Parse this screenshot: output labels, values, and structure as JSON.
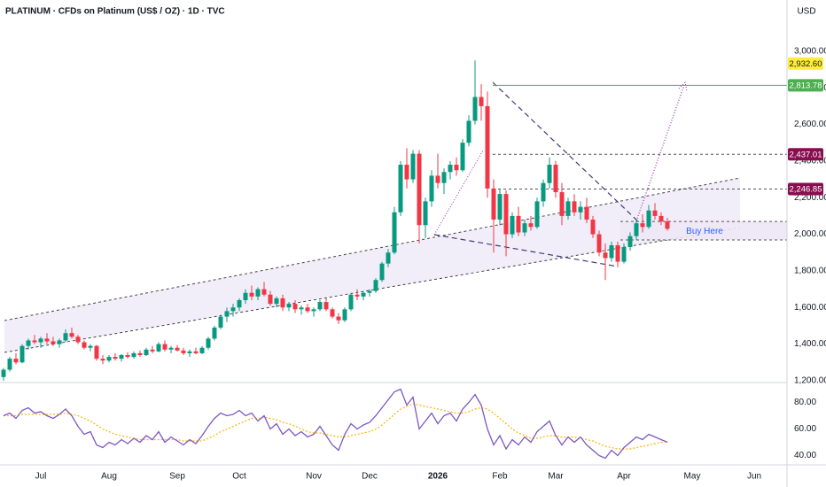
{
  "chart_data": {
    "type": "candlestick",
    "title": "PLATINUM · CFDs on Platinum (US$ / OZ) · 1D · TVC",
    "currency": "USD",
    "up_color": "#089981",
    "down_color": "#f23645",
    "grid": false,
    "categories": [
      null,
      null,
      null,
      null,
      null,
      null,
      "Jul",
      null,
      null,
      null,
      null,
      null,
      null,
      null,
      null,
      null,
      null,
      "Aug",
      null,
      null,
      null,
      null,
      null,
      null,
      null,
      null,
      null,
      null,
      "Sep",
      null,
      null,
      null,
      null,
      null,
      null,
      null,
      null,
      null,
      "Oct",
      null,
      null,
      null,
      null,
      null,
      null,
      null,
      null,
      null,
      null,
      null,
      "Nov",
      null,
      null,
      null,
      null,
      null,
      null,
      null,
      null,
      "Dec",
      null,
      null,
      null,
      null,
      null,
      null,
      null,
      null,
      null,
      null,
      "2026",
      null,
      null,
      null,
      null,
      null,
      null,
      null,
      null,
      null,
      "Feb",
      null,
      null,
      null,
      null,
      null,
      null,
      null,
      null,
      "Mar",
      null,
      null,
      null,
      null,
      null,
      null,
      null,
      null,
      null,
      null,
      "Apr",
      null,
      null,
      null,
      null,
      null,
      null,
      null,
      null,
      null,
      null,
      "May",
      null,
      null,
      null,
      null,
      null,
      null,
      null,
      null,
      null,
      "Jun",
      null,
      null,
      null,
      null
    ],
    "ohlc": [
      [
        1220,
        1270,
        1200,
        1260
      ],
      [
        1260,
        1330,
        1250,
        1320
      ],
      [
        1320,
        1350,
        1290,
        1300
      ],
      [
        1300,
        1400,
        1295,
        1390
      ],
      [
        1390,
        1430,
        1370,
        1420
      ],
      [
        1420,
        1450,
        1400,
        1410
      ],
      [
        1410,
        1440,
        1380,
        1430
      ],
      [
        1430,
        1460,
        1400,
        1415
      ],
      [
        1415,
        1440,
        1390,
        1400
      ],
      [
        1400,
        1430,
        1380,
        1420
      ],
      [
        1420,
        1480,
        1410,
        1460
      ],
      [
        1460,
        1490,
        1430,
        1440
      ],
      [
        1440,
        1450,
        1400,
        1410
      ],
      [
        1410,
        1420,
        1370,
        1380
      ],
      [
        1380,
        1400,
        1360,
        1390
      ],
      [
        1390,
        1395,
        1310,
        1320
      ],
      [
        1320,
        1340,
        1290,
        1310
      ],
      [
        1310,
        1340,
        1300,
        1330
      ],
      [
        1330,
        1350,
        1310,
        1320
      ],
      [
        1320,
        1345,
        1305,
        1340
      ],
      [
        1340,
        1355,
        1320,
        1330
      ],
      [
        1330,
        1360,
        1320,
        1350
      ],
      [
        1350,
        1365,
        1330,
        1340
      ],
      [
        1340,
        1380,
        1335,
        1370
      ],
      [
        1370,
        1390,
        1350,
        1360
      ],
      [
        1360,
        1410,
        1355,
        1400
      ],
      [
        1400,
        1420,
        1360,
        1370
      ],
      [
        1370,
        1390,
        1350,
        1380
      ],
      [
        1380,
        1395,
        1360,
        1365
      ],
      [
        1365,
        1380,
        1340,
        1350
      ],
      [
        1350,
        1370,
        1330,
        1360
      ],
      [
        1360,
        1380,
        1345,
        1350
      ],
      [
        1350,
        1390,
        1345,
        1380
      ],
      [
        1380,
        1440,
        1370,
        1430
      ],
      [
        1430,
        1500,
        1420,
        1490
      ],
      [
        1490,
        1560,
        1480,
        1550
      ],
      [
        1550,
        1600,
        1520,
        1580
      ],
      [
        1580,
        1620,
        1550,
        1600
      ],
      [
        1600,
        1650,
        1580,
        1640
      ],
      [
        1640,
        1700,
        1620,
        1680
      ],
      [
        1680,
        1720,
        1640,
        1660
      ],
      [
        1660,
        1710,
        1640,
        1700
      ],
      [
        1700,
        1740,
        1660,
        1670
      ],
      [
        1670,
        1690,
        1610,
        1620
      ],
      [
        1620,
        1660,
        1600,
        1650
      ],
      [
        1650,
        1670,
        1580,
        1600
      ],
      [
        1600,
        1630,
        1580,
        1620
      ],
      [
        1620,
        1640,
        1570,
        1590
      ],
      [
        1590,
        1610,
        1560,
        1600
      ],
      [
        1600,
        1620,
        1570,
        1580
      ],
      [
        1580,
        1600,
        1550,
        1590
      ],
      [
        1590,
        1640,
        1580,
        1630
      ],
      [
        1630,
        1650,
        1580,
        1590
      ],
      [
        1590,
        1600,
        1540,
        1550
      ],
      [
        1550,
        1570,
        1510,
        1530
      ],
      [
        1530,
        1600,
        1520,
        1590
      ],
      [
        1590,
        1680,
        1580,
        1670
      ],
      [
        1670,
        1700,
        1640,
        1660
      ],
      [
        1660,
        1690,
        1640,
        1680
      ],
      [
        1680,
        1700,
        1660,
        1690
      ],
      [
        1690,
        1760,
        1680,
        1750
      ],
      [
        1750,
        1850,
        1740,
        1840
      ],
      [
        1840,
        1920,
        1820,
        1900
      ],
      [
        1900,
        2150,
        1890,
        2120
      ],
      [
        2120,
        2400,
        2100,
        2380
      ],
      [
        2380,
        2470,
        2250,
        2300
      ],
      [
        2300,
        2460,
        2280,
        2440
      ],
      [
        2440,
        2460,
        1950,
        2050
      ],
      [
        2050,
        2200,
        1980,
        2180
      ],
      [
        2180,
        2350,
        2150,
        2320
      ],
      [
        2320,
        2440,
        2250,
        2280
      ],
      [
        2280,
        2360,
        2220,
        2340
      ],
      [
        2340,
        2400,
        2300,
        2380
      ],
      [
        2380,
        2420,
        2320,
        2350
      ],
      [
        2350,
        2520,
        2340,
        2500
      ],
      [
        2500,
        2650,
        2480,
        2620
      ],
      [
        2620,
        2950,
        2600,
        2750
      ],
      [
        2750,
        2820,
        2620,
        2700
      ],
      [
        2700,
        2780,
        2200,
        2250
      ],
      [
        2250,
        2300,
        1900,
        2080
      ],
      [
        2080,
        2250,
        2050,
        2220
      ],
      [
        2220,
        2240,
        1880,
        2000
      ],
      [
        2000,
        2120,
        1980,
        2100
      ],
      [
        2100,
        2150,
        1990,
        2010
      ],
      [
        2010,
        2080,
        1990,
        2060
      ],
      [
        2060,
        2100,
        2020,
        2040
      ],
      [
        2040,
        2200,
        2030,
        2180
      ],
      [
        2180,
        2300,
        2150,
        2280
      ],
      [
        2280,
        2420,
        2250,
        2380
      ],
      [
        2380,
        2400,
        2200,
        2230
      ],
      [
        2230,
        2280,
        2050,
        2100
      ],
      [
        2100,
        2200,
        2080,
        2180
      ],
      [
        2180,
        2220,
        2100,
        2120
      ],
      [
        2120,
        2180,
        2080,
        2150
      ],
      [
        2150,
        2200,
        2060,
        2080
      ],
      [
        2080,
        2100,
        1980,
        2000
      ],
      [
        2000,
        2020,
        1880,
        1900
      ],
      [
        1900,
        1950,
        1750,
        1870
      ],
      [
        1870,
        1960,
        1850,
        1940
      ],
      [
        1940,
        1960,
        1820,
        1850
      ],
      [
        1850,
        1950,
        1840,
        1930
      ],
      [
        1930,
        2010,
        1910,
        1990
      ],
      [
        1990,
        2080,
        1970,
        2060
      ],
      [
        2060,
        2110,
        2010,
        2040
      ],
      [
        2040,
        2160,
        2030,
        2130
      ],
      [
        2130,
        2170,
        2080,
        2100
      ],
      [
        2100,
        2120,
        2050,
        2070
      ],
      [
        2070,
        2090,
        2020,
        2030
      ],
      null,
      null,
      null,
      null,
      null,
      null,
      null,
      null,
      null,
      null,
      null,
      null,
      null,
      null,
      null,
      null,
      null,
      null
    ],
    "ylim": [
      1190,
      3280
    ],
    "yticks": [
      {
        "value": 1200,
        "label": "1,200.00"
      },
      {
        "value": 1400,
        "label": "1,400.00"
      },
      {
        "value": 1600,
        "label": "1,600.00"
      },
      {
        "value": 1800,
        "label": "1,800.00"
      },
      {
        "value": 2000,
        "label": "2,000.00"
      },
      {
        "value": 2200,
        "label": "2,200.00"
      },
      {
        "value": 2400,
        "label": "2,400.00"
      },
      {
        "value": 2600,
        "label": "2,600.00"
      },
      {
        "value": 2800,
        "label": "2,800.00"
      },
      {
        "value": 3000,
        "label": "3,000.00"
      }
    ],
    "price_labels": [
      {
        "value": 2932.6,
        "label": "2,932.60",
        "color": "#ffeb3b",
        "text_color": "#131722",
        "line": "none"
      },
      {
        "value": 2813.78,
        "label": "2,813.78",
        "color": "#4caf50",
        "text_color": "#ffffff",
        "line": "solid"
      },
      {
        "value": 2437.01,
        "label": "2,437.01",
        "color": "#880e4f",
        "text_color": "#ffffff",
        "line": "dashed"
      },
      {
        "value": 2246.85,
        "label": "2,246.85",
        "color": "#880e4f",
        "text_color": "#ffffff",
        "line": "dashed"
      }
    ],
    "zone": {
      "label": "Buy Here",
      "range": [
        1969,
        2070
      ],
      "color": "#ede7f6",
      "text_color": "#2962ff"
    },
    "rsi": {
      "values": [
        70,
        72,
        68,
        74,
        76,
        72,
        73,
        70,
        68,
        71,
        75,
        70,
        62,
        56,
        58,
        48,
        46,
        50,
        48,
        52,
        49,
        53,
        50,
        55,
        52,
        58,
        50,
        54,
        51,
        48,
        52,
        49,
        55,
        62,
        68,
        72,
        70,
        71,
        74,
        70,
        72,
        66,
        70,
        60,
        64,
        56,
        60,
        55,
        58,
        54,
        56,
        62,
        55,
        48,
        44,
        56,
        64,
        60,
        63,
        65,
        70,
        76,
        82,
        88,
        90,
        78,
        84,
        60,
        66,
        72,
        64,
        70,
        72,
        66,
        75,
        80,
        86,
        78,
        60,
        48,
        55,
        45,
        52,
        48,
        54,
        50,
        58,
        62,
        66,
        55,
        48,
        54,
        50,
        54,
        48,
        44,
        40,
        38,
        44,
        40,
        46,
        50,
        54,
        52,
        56,
        54,
        52,
        50,
        null,
        null,
        null,
        null,
        null,
        null,
        null,
        null,
        null,
        null,
        null,
        null,
        null,
        null,
        null,
        null,
        null,
        null
      ],
      "ma": [
        70,
        70,
        70,
        71,
        71,
        71,
        71,
        71,
        71,
        71,
        72,
        71,
        70,
        68,
        66,
        63,
        60,
        58,
        56,
        55,
        54,
        53,
        52,
        52,
        52,
        52,
        52,
        52,
        52,
        51,
        51,
        51,
        51,
        53,
        55,
        58,
        60,
        62,
        64,
        66,
        68,
        68,
        69,
        68,
        67,
        65,
        64,
        62,
        60,
        58,
        57,
        57,
        56,
        55,
        54,
        54,
        55,
        56,
        57,
        58,
        60,
        63,
        67,
        71,
        75,
        77,
        79,
        78,
        77,
        76,
        75,
        74,
        73,
        72,
        72,
        73,
        75,
        76,
        75,
        72,
        68,
        64,
        60,
        57,
        55,
        53,
        53,
        54,
        55,
        55,
        54,
        54,
        54,
        53,
        52,
        51,
        49,
        47,
        46,
        45,
        45,
        45,
        46,
        47,
        48,
        49,
        50,
        51,
        null,
        null,
        null,
        null,
        null,
        null,
        null,
        null,
        null,
        null,
        null,
        null,
        null,
        null,
        null,
        null,
        null,
        null
      ],
      "color": "#7e57c2",
      "ma_color": "#ffb300",
      "ylim": [
        33,
        95
      ],
      "yticks": [
        {
          "value": 40,
          "label": "40.00"
        },
        {
          "value": 60,
          "label": "60.00"
        },
        {
          "value": 80,
          "label": "80.00"
        }
      ]
    }
  }
}
